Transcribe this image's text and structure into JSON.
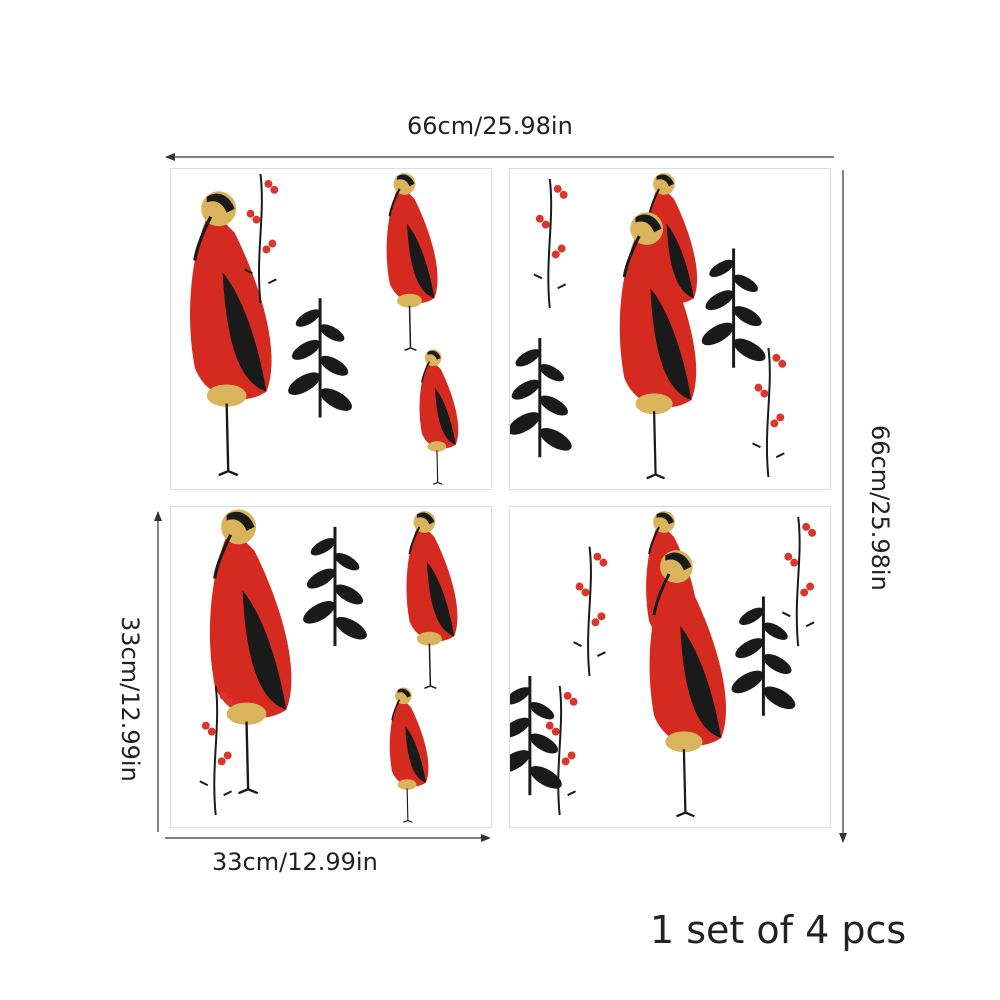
{
  "dimensions": {
    "total_width": "66cm/25.98in",
    "total_height": "66cm/25.98in",
    "tile_width": "33cm/12.99in",
    "tile_height": "33cm/12.99in"
  },
  "set_label": "1 set of 4 pcs",
  "colors": {
    "red": "#d42a20",
    "gold": "#d9b45c",
    "black": "#1a1a1a",
    "berry": "#d9372b"
  },
  "tiles": [
    {
      "name": "tile-top-left"
    },
    {
      "name": "tile-top-right"
    },
    {
      "name": "tile-bottom-left"
    },
    {
      "name": "tile-bottom-right"
    }
  ]
}
